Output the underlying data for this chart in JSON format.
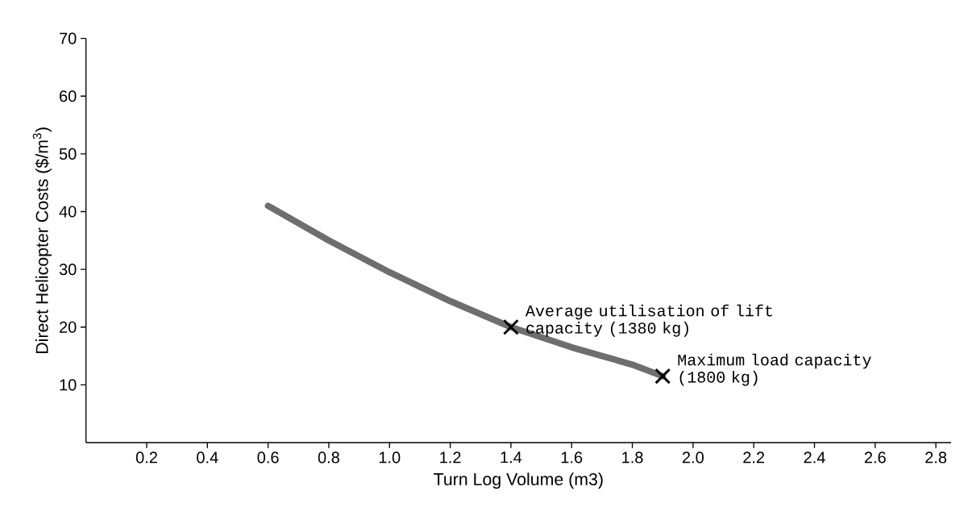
{
  "chart_data": {
    "type": "line",
    "xlabel": "Turn Log Volume  (m3)",
    "ylabel": "Direct Helicopter Costs ($/m$^{3}$)",
    "xlim": [
      0,
      2.85
    ],
    "ylim": [
      0,
      70
    ],
    "xticks": [
      0.2,
      0.4,
      0.6,
      0.8,
      {
        "value": 1.0,
        "label": "1.0"
      },
      1.2,
      1.4,
      1.6,
      1.8,
      {
        "value": 2.0,
        "label": "2.0"
      },
      2.2,
      2.4,
      2.6,
      2.8
    ],
    "yticks": [
      10,
      20,
      30,
      40,
      50,
      60,
      70
    ],
    "grid": false,
    "series": [
      {
        "color": "#6e6e6e",
        "marker": "none",
        "x": [
          0.6,
          0.8,
          1.0,
          1.2,
          1.4,
          1.6,
          1.8,
          1.9
        ],
        "values": [
          41,
          35,
          29.5,
          24.5,
          20,
          16.5,
          13.5,
          11.5
        ]
      },
      {
        "type": "scatter",
        "color": "#000000",
        "marker": "cross",
        "x": [
          1.4,
          1.9
        ],
        "values": [
          20,
          11.5
        ]
      }
    ],
    "annotations": [
      {
        "text": "Average utilisation of lift capacity (1380 kg)",
        "x": 1.4,
        "y": 20
      },
      {
        "text": "Maximum load capacity (1800 kg)",
        "x": 1.9,
        "y": 11.5
      }
    ]
  }
}
